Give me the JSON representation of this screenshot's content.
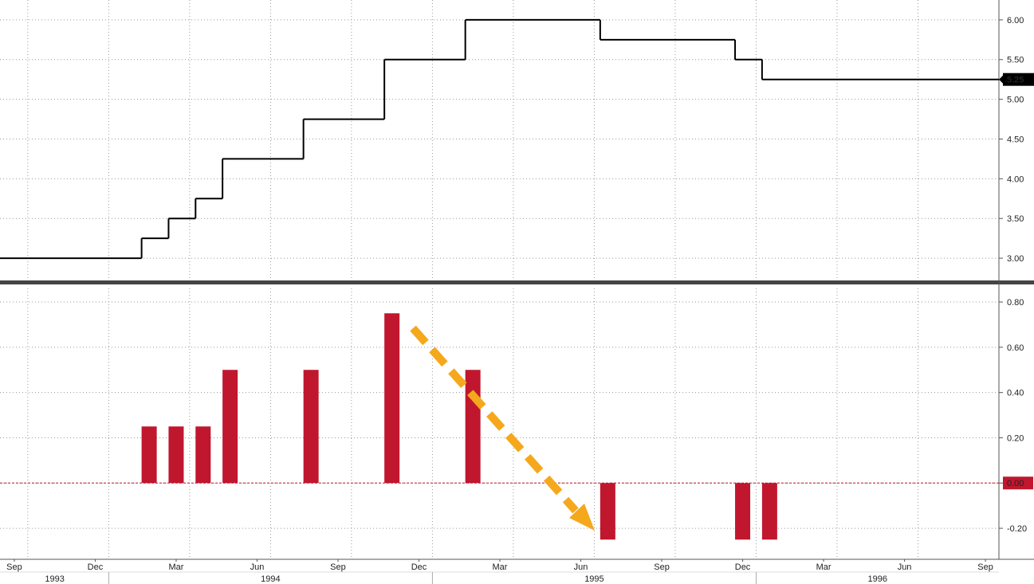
{
  "chart_data": [
    {
      "type": "step",
      "x": [
        "1993-09",
        "1994-02",
        "1994-03",
        "1994-04",
        "1994-05",
        "1994-08",
        "1994-11",
        "1995-02",
        "1995-07",
        "1995-12",
        "1996-01"
      ],
      "values": [
        3.0,
        3.25,
        3.5,
        3.75,
        4.25,
        4.75,
        5.5,
        6.0,
        5.75,
        5.5,
        5.25
      ],
      "color": "#000000",
      "xlim": [
        "1993-09",
        "1996-10"
      ],
      "ylim": [
        2.72,
        6.25
      ],
      "yticks": [
        {
          "value": 3,
          "label": "3.00"
        },
        {
          "value": 3.5,
          "label": "3.50"
        },
        {
          "value": 4,
          "label": "4.00"
        },
        {
          "value": 4.5,
          "label": "4.50"
        },
        {
          "value": 5,
          "label": "5.00"
        },
        {
          "value": 5.5,
          "label": "5.50"
        },
        {
          "value": 6,
          "label": "6.00"
        }
      ],
      "grid": true,
      "last_value_label": "5.25"
    },
    {
      "type": "bar",
      "x": [
        "1994-02",
        "1994-03",
        "1994-04",
        "1994-05",
        "1994-08",
        "1994-11",
        "1995-02",
        "1995-07",
        "1995-12",
        "1996-01"
      ],
      "values": [
        0.25,
        0.25,
        0.25,
        0.5,
        0.5,
        0.75,
        0.5,
        -0.25,
        -0.25,
        -0.25
      ],
      "color": "#c0172e",
      "zero_line_color": "#c0172e",
      "xlim": [
        "1993-09",
        "1996-10"
      ],
      "ylim": [
        -0.33,
        0.86
      ],
      "yticks": [
        {
          "value": -0.2,
          "label": "-0.20"
        },
        {
          "value": 0,
          "label": "0.00"
        },
        {
          "value": 0.2,
          "label": "0.20"
        },
        {
          "value": 0.4,
          "label": "0.40"
        },
        {
          "value": 0.6,
          "label": "0.60"
        },
        {
          "value": 0.8,
          "label": "0.80"
        }
      ],
      "grid": true,
      "xticks": [
        {
          "value": "1993-09",
          "label": "Sep"
        },
        {
          "value": "1993-12",
          "label": "Dec"
        },
        {
          "value": "1994-03",
          "label": "Mar"
        },
        {
          "value": "1994-06",
          "label": "Jun"
        },
        {
          "value": "1994-09",
          "label": "Sep"
        },
        {
          "value": "1994-12",
          "label": "Dec"
        },
        {
          "value": "1995-03",
          "label": "Mar"
        },
        {
          "value": "1995-06",
          "label": "Jun"
        },
        {
          "value": "1995-09",
          "label": "Sep"
        },
        {
          "value": "1995-12",
          "label": "Dec"
        },
        {
          "value": "1996-03",
          "label": "Mar"
        },
        {
          "value": "1996-06",
          "label": "Jun"
        },
        {
          "value": "1996-09",
          "label": "Sep"
        }
      ],
      "year_labels": [
        1993,
        1994,
        1995,
        1996
      ]
    }
  ]
}
